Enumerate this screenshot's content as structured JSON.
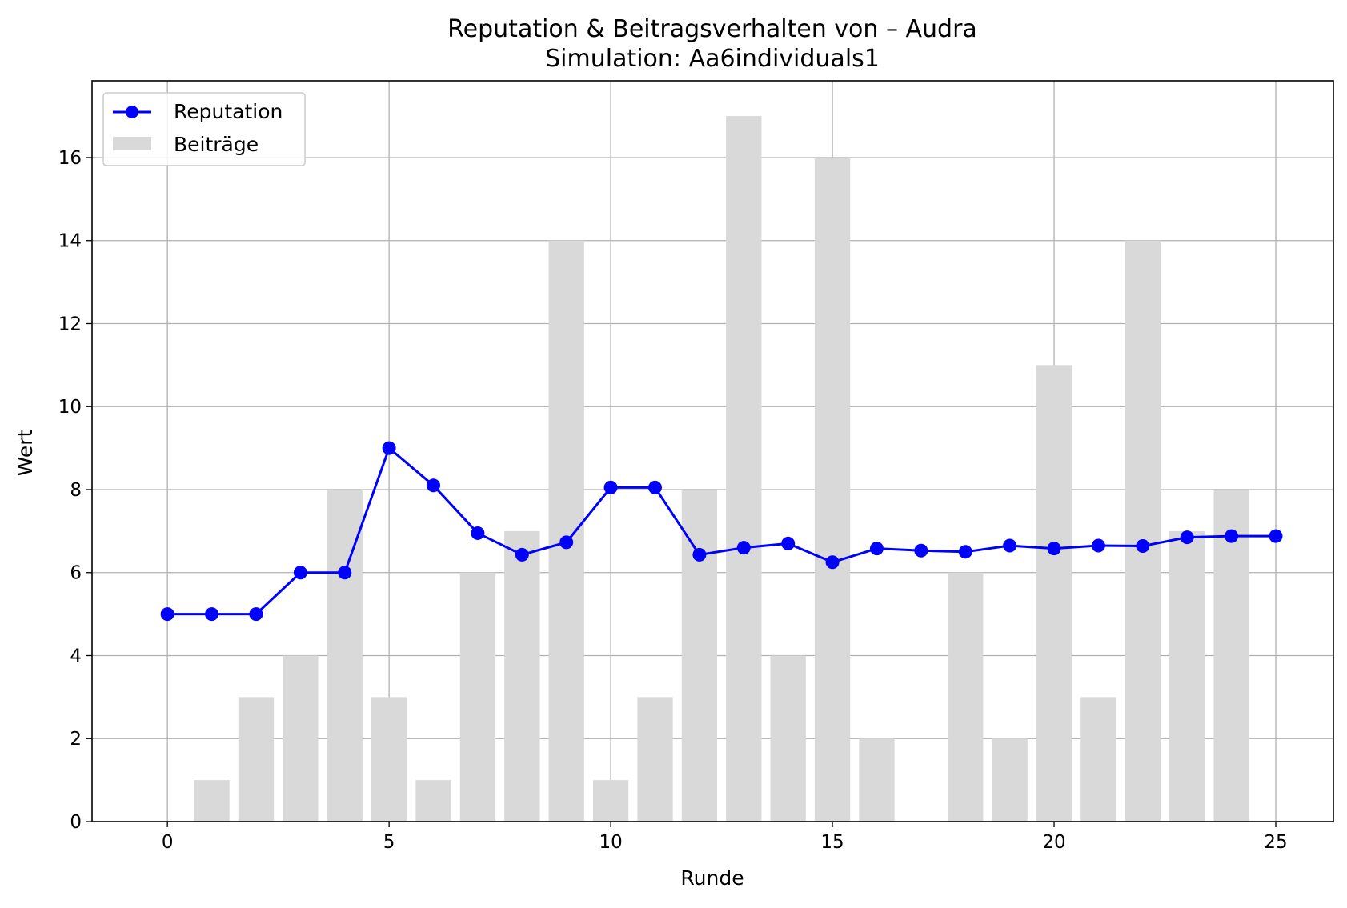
{
  "chart_data": {
    "type": "bar+line",
    "title": "Reputation & Beitragsverhalten von – Audra",
    "subtitle": "Simulation: Aa6individuals1",
    "xlabel": "Runde",
    "ylabel": "Wert",
    "xlim": [
      -1.7,
      26.3
    ],
    "ylim": [
      0,
      17.85
    ],
    "x_ticks": [
      0,
      5,
      10,
      15,
      20,
      25
    ],
    "y_ticks": [
      0,
      2,
      4,
      6,
      8,
      10,
      12,
      14,
      16
    ],
    "grid": true,
    "legend_position": "top-left",
    "x": [
      0,
      1,
      2,
      3,
      4,
      5,
      6,
      7,
      8,
      9,
      10,
      11,
      12,
      13,
      14,
      15,
      16,
      17,
      18,
      19,
      20,
      21,
      22,
      23,
      24,
      25
    ],
    "series": [
      {
        "name": "Beiträge",
        "kind": "bar",
        "color": "#d9d9d9",
        "x": [
          0,
          1,
          2,
          3,
          4,
          5,
          6,
          7,
          8,
          9,
          10,
          11,
          12,
          13,
          14,
          15,
          16,
          17,
          18,
          19,
          20,
          21,
          22,
          23,
          24
        ],
        "values": [
          0,
          1,
          3,
          4,
          8,
          3,
          1,
          6,
          7,
          14,
          1,
          3,
          8,
          17,
          4,
          16,
          2,
          0,
          6,
          2,
          11,
          3,
          14,
          7,
          8
        ]
      },
      {
        "name": "Reputation",
        "kind": "line",
        "color": "#0000ff",
        "marker": "circle",
        "x": [
          0,
          1,
          2,
          3,
          4,
          5,
          6,
          7,
          8,
          9,
          10,
          11,
          12,
          13,
          14,
          15,
          16,
          17,
          18,
          19,
          20,
          21,
          22,
          23,
          24,
          25
        ],
        "values": [
          5.0,
          5.0,
          5.0,
          6.0,
          6.0,
          9.0,
          8.1,
          6.95,
          6.43,
          6.73,
          8.05,
          8.05,
          6.43,
          6.6,
          6.7,
          6.25,
          6.58,
          6.53,
          6.5,
          6.65,
          6.58,
          6.65,
          6.64,
          6.85,
          6.88,
          6.88
        ]
      }
    ]
  }
}
